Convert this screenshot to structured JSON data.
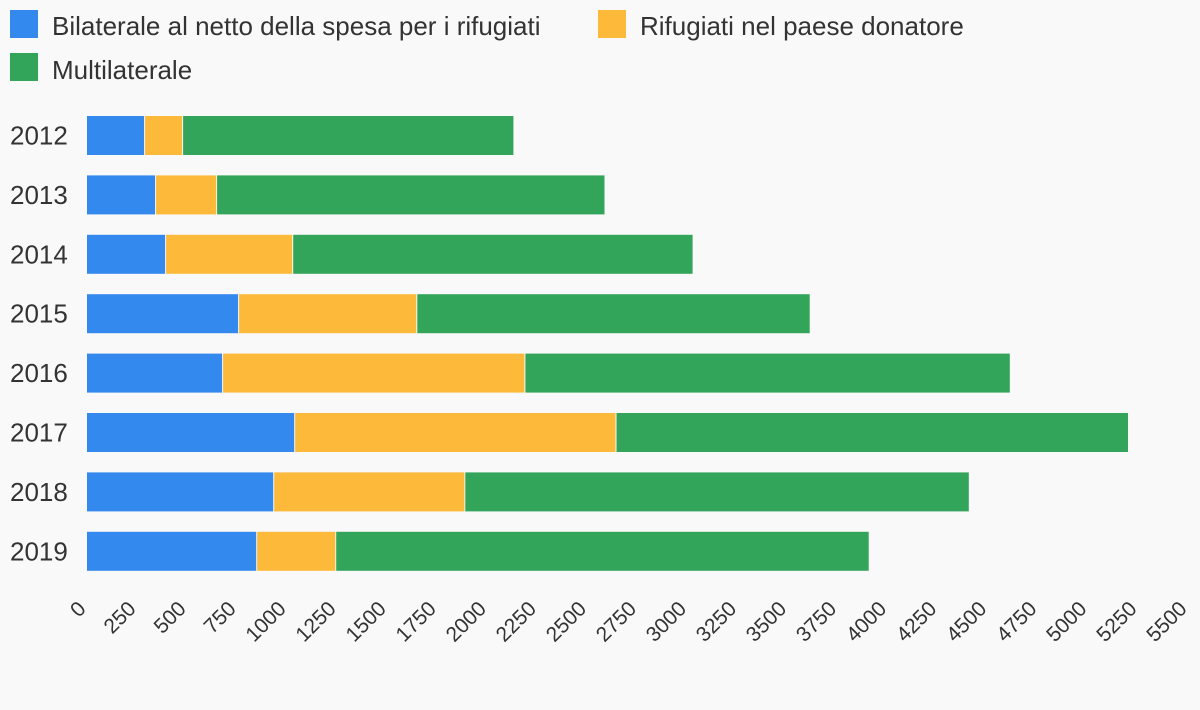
{
  "chart_data": {
    "type": "bar",
    "orientation": "horizontal",
    "stacked": true,
    "categories": [
      "2012",
      "2013",
      "2014",
      "2015",
      "2016",
      "2017",
      "2018",
      "2019"
    ],
    "series": [
      {
        "name": "Bilaterale al netto della spesa per i rifugiati",
        "color": "#3389ee",
        "values": [
          290,
          345,
          395,
          760,
          680,
          1040,
          935,
          850
        ]
      },
      {
        "name": "Rifugiati nel paese donatore",
        "color": "#fdb939",
        "values": [
          190,
          305,
          635,
          890,
          1510,
          1605,
          955,
          395
        ]
      },
      {
        "name": "Multilaterale",
        "color": "#33a55b",
        "values": [
          1650,
          1935,
          1995,
          1960,
          2420,
          2555,
          2515,
          2660
        ]
      }
    ],
    "xlim": [
      0,
      5500
    ],
    "xticks": [
      "0",
      "250",
      "500",
      "750",
      "1000",
      "1250",
      "1500",
      "1750",
      "2000",
      "2250",
      "2500",
      "2750",
      "3000",
      "3250",
      "3500",
      "3750",
      "4000",
      "4250",
      "4500",
      "4750",
      "5000",
      "5250",
      "5500"
    ],
    "title": "",
    "xlabel": "",
    "ylabel": "",
    "grid": false,
    "legend_position": "top-left"
  }
}
